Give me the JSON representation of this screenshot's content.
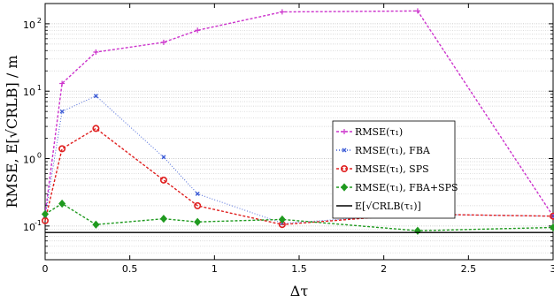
{
  "chart_data": {
    "type": "line",
    "xlabel": "Δτ",
    "ylabel": "RMSE, E[√CRLB] / m",
    "xlim": [
      0,
      3
    ],
    "ylim_log": [
      -1.5,
      2.3
    ],
    "yscale": "log",
    "grid": "horizontal-major-minor",
    "legend_position": "center-right",
    "x_ticks": [
      0,
      0.5,
      1,
      1.5,
      2,
      2.5,
      3
    ],
    "x_tick_labels": [
      "0",
      "0.5",
      "1",
      "1.5",
      "2",
      "2.5",
      "3"
    ],
    "y_ticks": [
      -1,
      0,
      1,
      2
    ],
    "y_tick_labels": [
      "10",
      "10",
      "10",
      "10"
    ],
    "y_tick_exponents": [
      "-1",
      "0",
      "1",
      "2"
    ],
    "series": [
      {
        "name": "RMSE(τ₁)",
        "color": "#cc33cc",
        "marker": "plus",
        "dash": "3,2",
        "x": [
          0,
          0.1,
          0.3,
          0.7,
          0.9,
          1.4,
          2.2,
          3.0
        ],
        "y": [
          0.15,
          13,
          38,
          53,
          80,
          150,
          155,
          0.14
        ]
      },
      {
        "name": "RMSE(τ₁), FBA",
        "color": "#3a5ad6",
        "marker": "x",
        "dash": "1,2",
        "x": [
          0,
          0.1,
          0.3,
          0.7,
          0.9,
          1.4,
          2.2,
          3.0
        ],
        "y": [
          0.14,
          5,
          8.5,
          1.05,
          0.3,
          0.11,
          0.15,
          0.14
        ]
      },
      {
        "name": "RMSE(τ₁), SPS",
        "color": "#e02020",
        "marker": "circle",
        "dash": "3,2",
        "x": [
          0,
          0.1,
          0.3,
          0.7,
          0.9,
          1.4,
          2.2,
          3.0
        ],
        "y": [
          0.12,
          1.4,
          2.8,
          0.48,
          0.2,
          0.105,
          0.15,
          0.14
        ]
      },
      {
        "name": "RMSE(τ₁), FBA+SPS",
        "color": "#1f9a1f",
        "marker": "diamond",
        "dash": "3,2",
        "x": [
          0,
          0.1,
          0.3,
          0.7,
          0.9,
          1.4,
          2.2,
          3.0
        ],
        "y": [
          0.15,
          0.215,
          0.105,
          0.128,
          0.115,
          0.125,
          0.085,
          0.095
        ]
      },
      {
        "name": "E[√CRLB(τ₁)]",
        "color": "#000000",
        "marker": "none",
        "dash": "",
        "x": [
          0,
          3.0
        ],
        "y": [
          0.08,
          0.08
        ]
      }
    ]
  }
}
